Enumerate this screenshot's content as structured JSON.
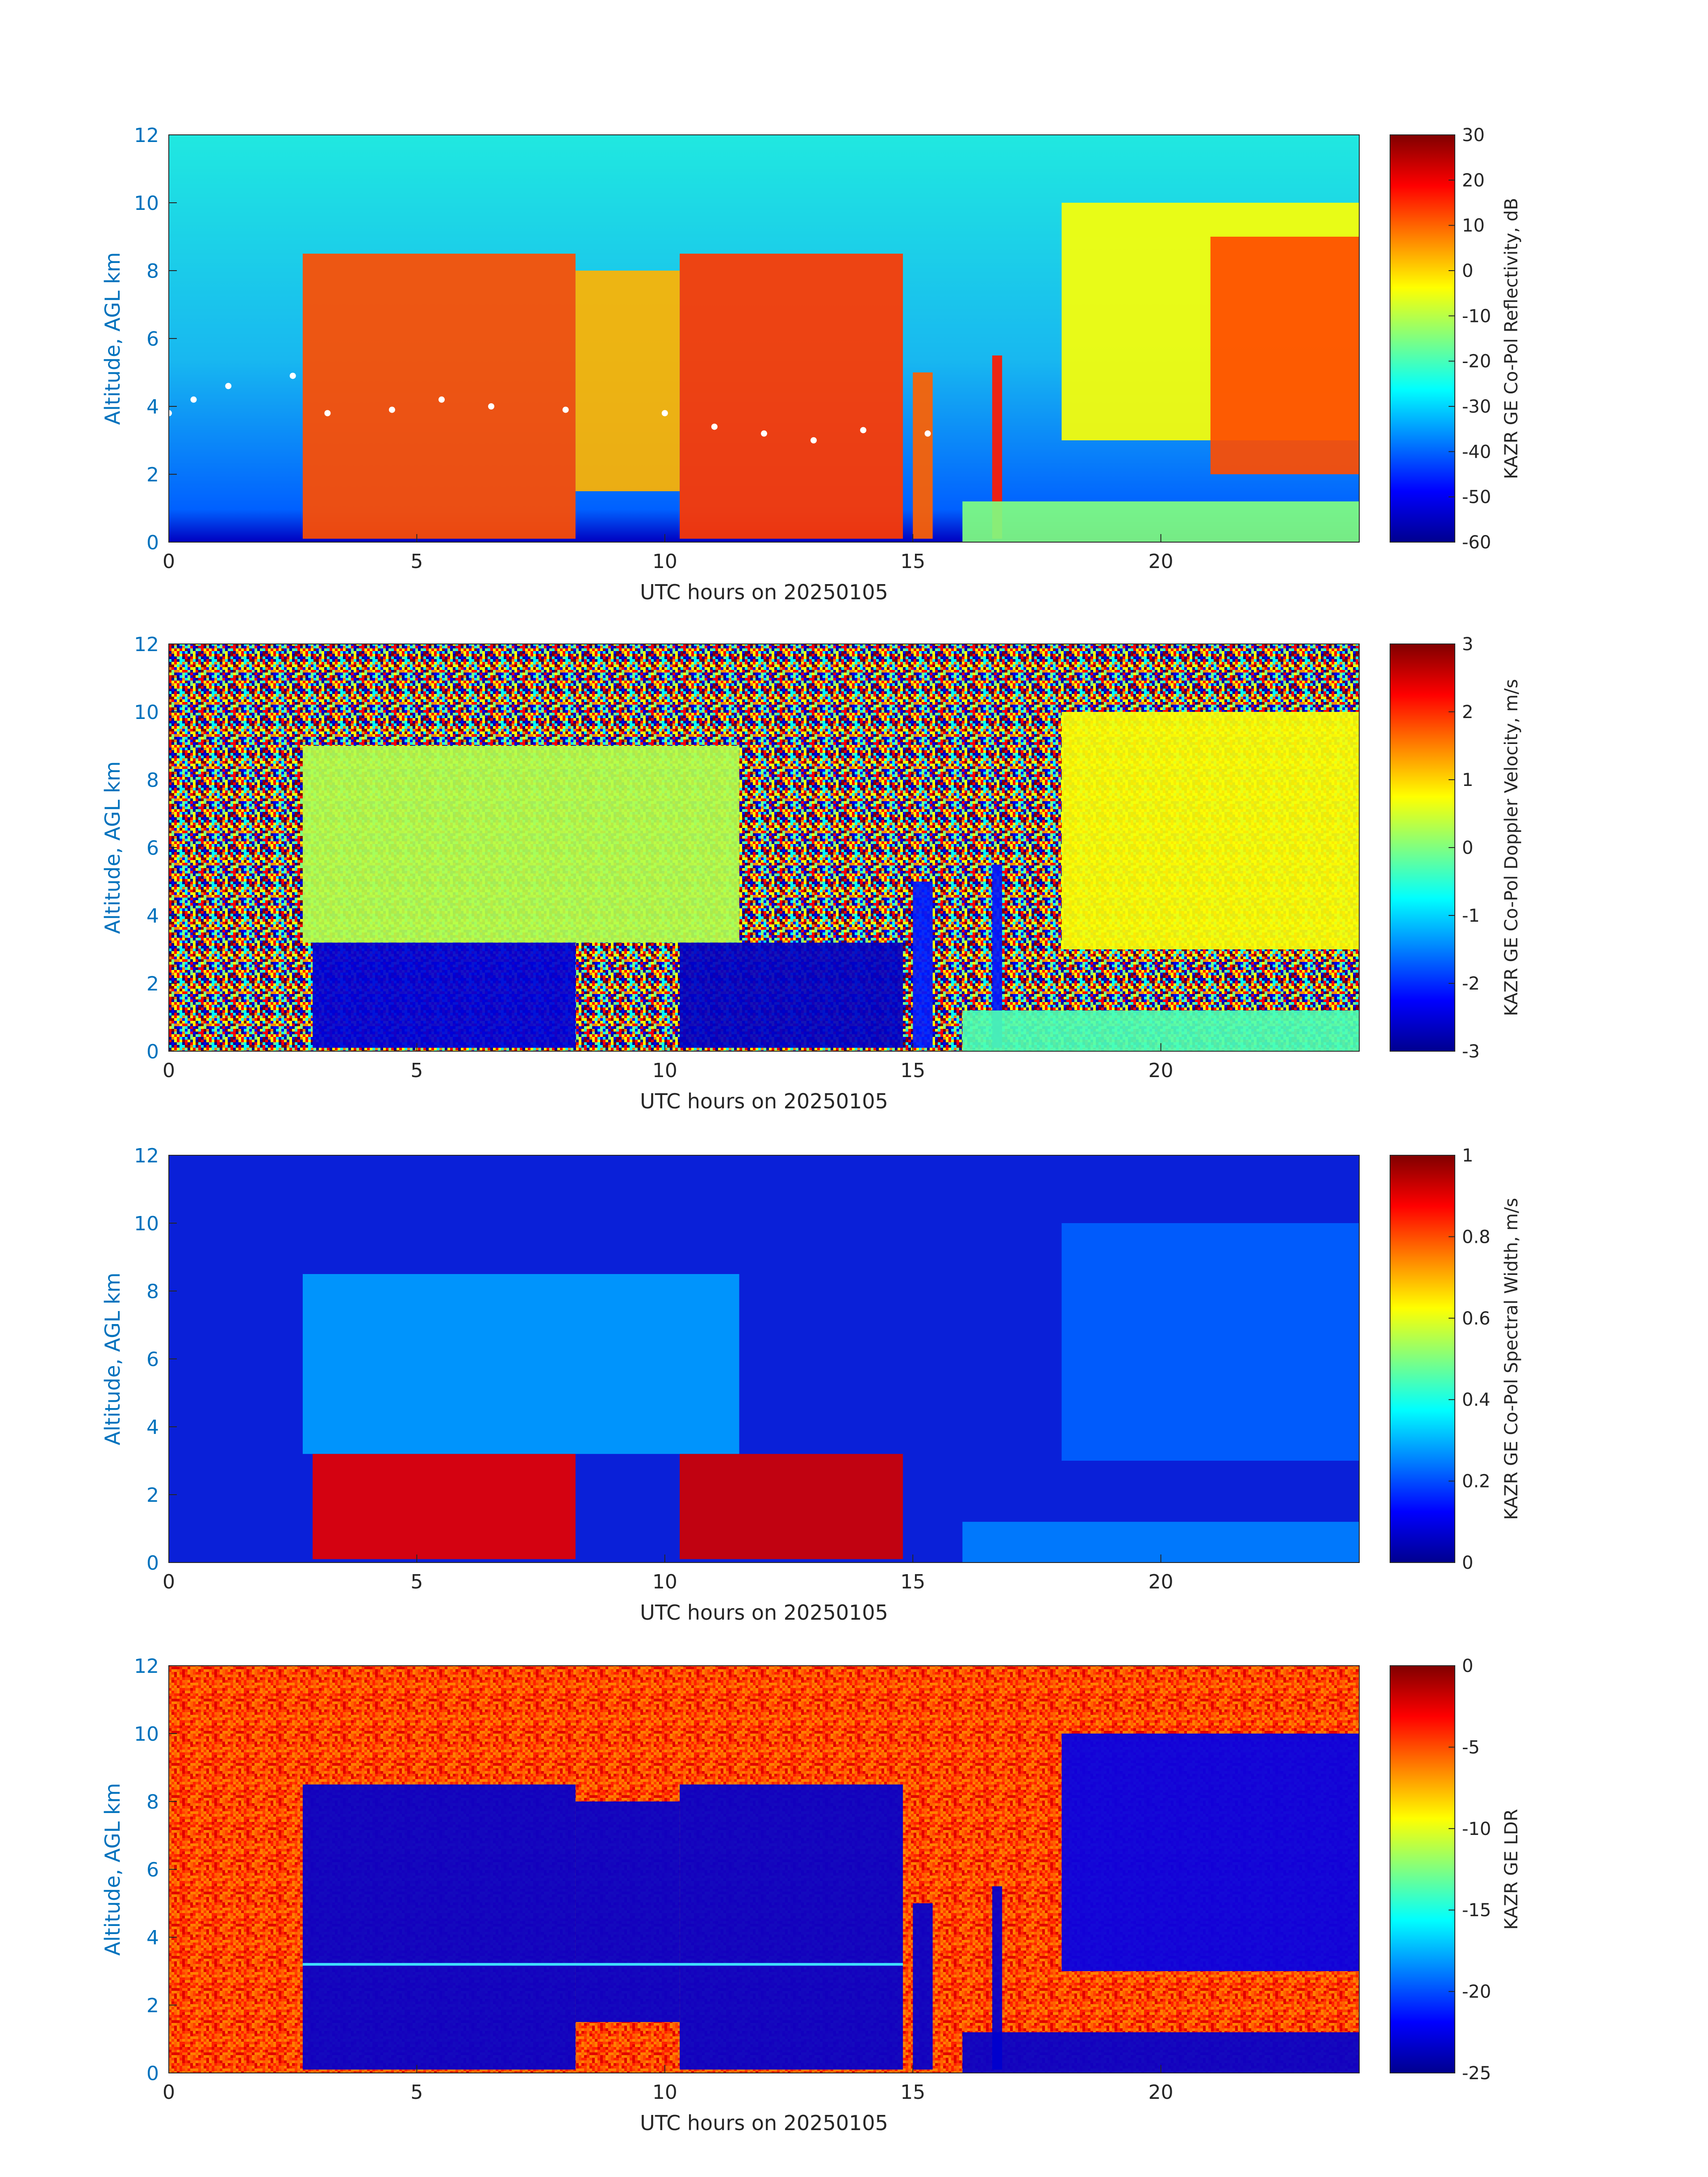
{
  "chart_data": [
    {
      "type": "heatmap",
      "xlabel": "UTC hours on 20250105",
      "ylabel": "Altitude, AGL km",
      "xlim": [
        0,
        24
      ],
      "ylim": [
        0,
        12
      ],
      "xticks": [
        "0",
        "5",
        "10",
        "15",
        "20"
      ],
      "yticks": [
        "0",
        "2",
        "4",
        "6",
        "8",
        "10",
        "12"
      ],
      "colorbar_label": "KAZR GE Co-Pol Reflectivity, dB",
      "colorbar_range": [
        -60,
        30
      ],
      "colorbar_ticks": [
        "30",
        "20",
        "10",
        "0",
        "-10",
        "-20",
        "-30",
        "-40",
        "-50",
        "-60"
      ],
      "colormap": "jet",
      "overlay": "white ceilometer cloud-base markers",
      "regions": [
        {
          "x": [
            2.7,
            8.2
          ],
          "y": [
            0.1,
            8.5
          ],
          "level": 0.8
        },
        {
          "x": [
            8.2,
            10.3
          ],
          "y": [
            1.5,
            8.0
          ],
          "level": 0.7
        },
        {
          "x": [
            10.3,
            14.8
          ],
          "y": [
            0.1,
            8.5
          ],
          "level": 0.82
        },
        {
          "x": [
            15.0,
            15.4
          ],
          "y": [
            0.1,
            5.0
          ],
          "level": 0.78
        },
        {
          "x": [
            16.6,
            16.8
          ],
          "y": [
            0.1,
            5.5
          ],
          "level": 0.85
        },
        {
          "x": [
            18.0,
            24.0
          ],
          "y": [
            3.0,
            10.0
          ],
          "level": 0.62
        },
        {
          "x": [
            21.0,
            24.0
          ],
          "y": [
            2.0,
            9.0
          ],
          "level": 0.8
        },
        {
          "x": [
            16.0,
            24.0
          ],
          "y": [
            0.0,
            1.2
          ],
          "level": 0.5
        }
      ]
    },
    {
      "type": "heatmap",
      "xlabel": "UTC hours on 20250105",
      "ylabel": "Altitude, AGL km",
      "xlim": [
        0,
        24
      ],
      "ylim": [
        0,
        12
      ],
      "xticks": [
        "0",
        "5",
        "10",
        "15",
        "20"
      ],
      "yticks": [
        "0",
        "2",
        "4",
        "6",
        "8",
        "10",
        "12"
      ],
      "colorbar_label": "KAZR GE Co-Pol Doppler Velocity, m/s",
      "colorbar_range": [
        -3,
        3
      ],
      "colorbar_ticks": [
        "3",
        "2",
        "1",
        "0",
        "-1",
        "-2",
        "-3"
      ],
      "colormap": "jet",
      "background": "noise",
      "regions": [
        {
          "x": [
            2.7,
            11.5
          ],
          "y": [
            3.2,
            9.0
          ],
          "level": 0.55
        },
        {
          "x": [
            2.9,
            8.2
          ],
          "y": [
            0.1,
            3.2
          ],
          "level": 0.08
        },
        {
          "x": [
            10.3,
            14.8
          ],
          "y": [
            0.1,
            3.2
          ],
          "level": 0.06
        },
        {
          "x": [
            15.0,
            15.4
          ],
          "y": [
            0.1,
            5.0
          ],
          "level": 0.15
        },
        {
          "x": [
            16.6,
            16.8
          ],
          "y": [
            0.1,
            5.5
          ],
          "level": 0.15
        },
        {
          "x": [
            18.0,
            24.0
          ],
          "y": [
            3.0,
            10.0
          ],
          "level": 0.62
        },
        {
          "x": [
            16.0,
            24.0
          ],
          "y": [
            0.0,
            1.2
          ],
          "level": 0.45
        }
      ]
    },
    {
      "type": "heatmap",
      "xlabel": "UTC hours on 20250105",
      "ylabel": "Altitude, AGL km",
      "xlim": [
        0,
        24
      ],
      "ylim": [
        0,
        12
      ],
      "xticks": [
        "0",
        "5",
        "10",
        "15",
        "20"
      ],
      "yticks": [
        "0",
        "2",
        "4",
        "6",
        "8",
        "10",
        "12"
      ],
      "colorbar_label": "KAZR GE Co-Pol Spectral Width, m/s",
      "colorbar_range": [
        0,
        1
      ],
      "colorbar_ticks": [
        "1",
        "0.8",
        "0.6",
        "0.4",
        "0.2",
        "0"
      ],
      "colormap": "jet",
      "regions": [
        {
          "x": [
            2.7,
            11.5
          ],
          "y": [
            3.2,
            8.5
          ],
          "level": 0.28
        },
        {
          "x": [
            2.9,
            8.2
          ],
          "y": [
            0.1,
            3.2
          ],
          "level": 0.9
        },
        {
          "x": [
            10.3,
            14.8
          ],
          "y": [
            0.1,
            3.2
          ],
          "level": 0.92
        },
        {
          "x": [
            18.0,
            24.0
          ],
          "y": [
            3.0,
            10.0
          ],
          "level": 0.22
        },
        {
          "x": [
            16.0,
            24.0
          ],
          "y": [
            0.0,
            1.2
          ],
          "level": 0.25
        }
      ]
    },
    {
      "type": "heatmap",
      "xlabel": "UTC hours on 20250105",
      "ylabel": "Altitude, AGL km",
      "xlim": [
        0,
        24
      ],
      "ylim": [
        0,
        12
      ],
      "xticks": [
        "0",
        "5",
        "10",
        "15",
        "20"
      ],
      "yticks": [
        "0",
        "2",
        "4",
        "6",
        "8",
        "10",
        "12"
      ],
      "colorbar_label": "KAZR GE LDR",
      "colorbar_range": [
        -25,
        0
      ],
      "colorbar_ticks": [
        "0",
        "-5",
        "-10",
        "-15",
        "-20",
        "-25"
      ],
      "colormap": "jet",
      "background_level": 0.85,
      "regions": [
        {
          "x": [
            2.7,
            8.2
          ],
          "y": [
            0.1,
            8.5
          ],
          "level": 0.07
        },
        {
          "x": [
            8.2,
            10.3
          ],
          "y": [
            1.5,
            8.0
          ],
          "level": 0.07
        },
        {
          "x": [
            10.3,
            14.8
          ],
          "y": [
            0.1,
            8.5
          ],
          "level": 0.07
        },
        {
          "x": [
            15.0,
            15.4
          ],
          "y": [
            0.1,
            5.0
          ],
          "level": 0.07
        },
        {
          "x": [
            16.6,
            16.8
          ],
          "y": [
            0.1,
            5.5
          ],
          "level": 0.07
        },
        {
          "x": [
            18.0,
            24.0
          ],
          "y": [
            3.0,
            10.0
          ],
          "level": 0.1
        },
        {
          "x": [
            16.0,
            24.0
          ],
          "y": [
            0.0,
            1.2
          ],
          "level": 0.07
        }
      ],
      "melting_layer_km": 3.2
    }
  ]
}
